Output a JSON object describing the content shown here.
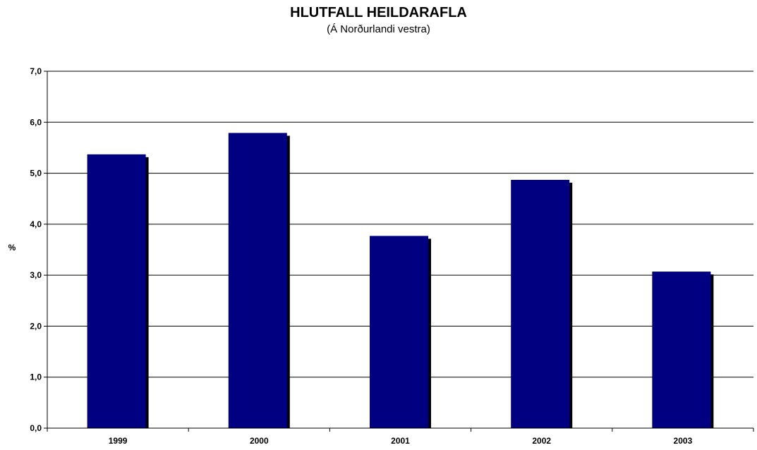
{
  "chart_data": {
    "type": "bar",
    "title": "HLUTFALL HEILDARAFLA",
    "subtitle": "(Á Norðurlandi vestra)",
    "xlabel": "",
    "ylabel": "%",
    "categories": [
      "1999",
      "2000",
      "2001",
      "2002",
      "2003"
    ],
    "values": [
      5.37,
      5.79,
      3.77,
      4.87,
      3.07
    ],
    "ylim": [
      0,
      7
    ],
    "yticks": [
      "0,0",
      "1,0",
      "2,0",
      "3,0",
      "4,0",
      "5,0",
      "6,0",
      "7,0"
    ],
    "grid": true,
    "legend": "none",
    "bar_color": "#000080",
    "shadow_color": "#000000"
  }
}
